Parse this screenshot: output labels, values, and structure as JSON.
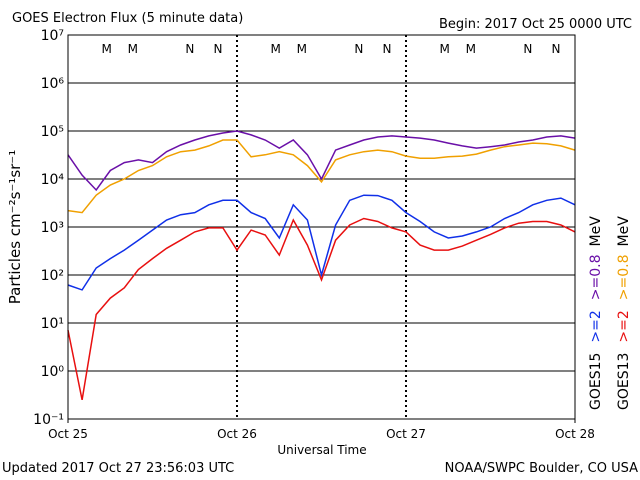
{
  "chart_data": {
    "type": "line",
    "title": "GOES Electron Flux (5 minute data)",
    "subtitle": "Begin: 2017 Oct 25 0000 UTC",
    "xlabel": "Universal Time",
    "ylabel": "Particles cm⁻²s⁻¹sr⁻¹",
    "footer_left": "Updated 2017 Oct 27 23:56:03 UTC",
    "footer_right": "NOAA/SWPC Boulder, CO USA",
    "log_y": true,
    "grid": true,
    "threshold": 1000,
    "xlim": [
      0,
      72
    ],
    "xticks": [
      {
        "value": 0,
        "label": "Oct 25"
      },
      {
        "value": 24,
        "label": "Oct 26"
      },
      {
        "value": 48,
        "label": "Oct 27"
      },
      {
        "value": 72,
        "label": "Oct 28"
      }
    ],
    "ylim": [
      0.1,
      10000000
    ],
    "yticks": [
      {
        "value": 0.1,
        "label": "10⁻¹"
      },
      {
        "value": 1,
        "label": "10⁰"
      },
      {
        "value": 10,
        "label": "10¹"
      },
      {
        "value": 100,
        "label": "10²"
      },
      {
        "value": 1000,
        "label": "10³"
      },
      {
        "value": 10000,
        "label": "10⁴"
      },
      {
        "value": 100000,
        "label": "10⁵"
      },
      {
        "value": 1000000,
        "label": "10⁶"
      },
      {
        "value": 10000000,
        "label": "10⁷"
      }
    ],
    "markers": [
      {
        "label": "M",
        "x": 5.5,
        "color": "#e00000"
      },
      {
        "label": "M",
        "x": 9.2,
        "color": "#0000e0"
      },
      {
        "label": "N",
        "x": 17.3,
        "color": "#e00000"
      },
      {
        "label": "N",
        "x": 21.3,
        "color": "#0000e0"
      },
      {
        "label": "M",
        "x": 29.5,
        "color": "#e00000"
      },
      {
        "label": "M",
        "x": 33.2,
        "color": "#0000e0"
      },
      {
        "label": "N",
        "x": 41.3,
        "color": "#e00000"
      },
      {
        "label": "N",
        "x": 45.3,
        "color": "#0000e0"
      },
      {
        "label": "M",
        "x": 53.5,
        "color": "#e00000"
      },
      {
        "label": "M",
        "x": 57.2,
        "color": "#0000e0"
      },
      {
        "label": "N",
        "x": 65.3,
        "color": "#e00000"
      },
      {
        "label": "N",
        "x": 69.3,
        "color": "#0000e0"
      }
    ],
    "legend": [
      {
        "label": "GOES15",
        "unit": "MeV"
      },
      {
        "label": "GOES13",
        "unit": "MeV"
      }
    ],
    "x": [
      0,
      2,
      4,
      6,
      8,
      10,
      12,
      14,
      16,
      18,
      20,
      22,
      24,
      26,
      28,
      30,
      32,
      34,
      36,
      38,
      40,
      42,
      44,
      46,
      48,
      50,
      52,
      54,
      56,
      58,
      60,
      62,
      64,
      66,
      68,
      70,
      72
    ],
    "series": [
      {
        "name": ">=2",
        "color": "#1030e8",
        "values": [
          62,
          49,
          140,
          220,
          330,
          530,
          860,
          1400,
          1800,
          2000,
          2900,
          3600,
          3600,
          2000,
          1500,
          590,
          2900,
          1400,
          100,
          1100,
          3600,
          4600,
          4500,
          3600,
          2000,
          1300,
          790,
          590,
          650,
          790,
          1000,
          1500,
          2000,
          2900,
          3600,
          4000,
          2900
        ]
      },
      {
        "name": ">=0.8",
        "color": "#6a10a8",
        "values": [
          32000,
          12000,
          5900,
          15000,
          22000,
          25000,
          22000,
          37000,
          51000,
          65000,
          79000,
          91000,
          100000,
          83000,
          65000,
          44000,
          65000,
          32000,
          10000,
          40000,
          51000,
          65000,
          75000,
          79000,
          75000,
          71000,
          65000,
          56000,
          49000,
          44000,
          47000,
          51000,
          59000,
          65000,
          75000,
          79000,
          71000
        ]
      },
      {
        "name": ">=2",
        "color": "#e81010",
        "values": [
          7.1,
          0.25,
          15,
          33,
          54,
          130,
          220,
          360,
          530,
          790,
          960,
          960,
          330,
          860,
          680,
          260,
          1400,
          420,
          79,
          530,
          1100,
          1500,
          1300,
          960,
          790,
          420,
          330,
          330,
          400,
          530,
          700,
          960,
          1200,
          1300,
          1300,
          1100,
          790
        ]
      },
      {
        "name": ">=0.8",
        "color": "#f0a000",
        "values": [
          2200,
          2000,
          4600,
          7500,
          10000,
          15000,
          19000,
          29000,
          37000,
          40000,
          49000,
          65000,
          65000,
          29000,
          32000,
          37000,
          32000,
          19000,
          8700,
          25000,
          32000,
          37000,
          40000,
          37000,
          30000,
          27000,
          27000,
          29000,
          30000,
          33000,
          40000,
          47000,
          51000,
          56000,
          54000,
          49000,
          40000
        ]
      }
    ]
  }
}
